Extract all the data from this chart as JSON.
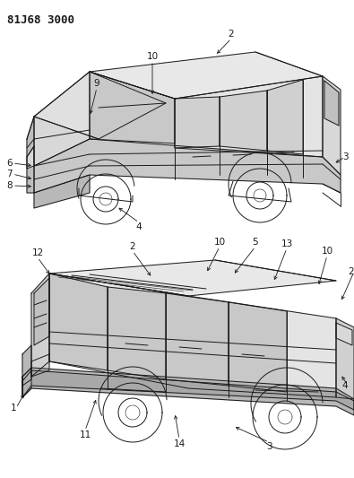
{
  "title": "81J68 3000",
  "bg": "#ffffff",
  "lc": "#1a1a1a",
  "lw": 0.7,
  "fs": 7.5
}
